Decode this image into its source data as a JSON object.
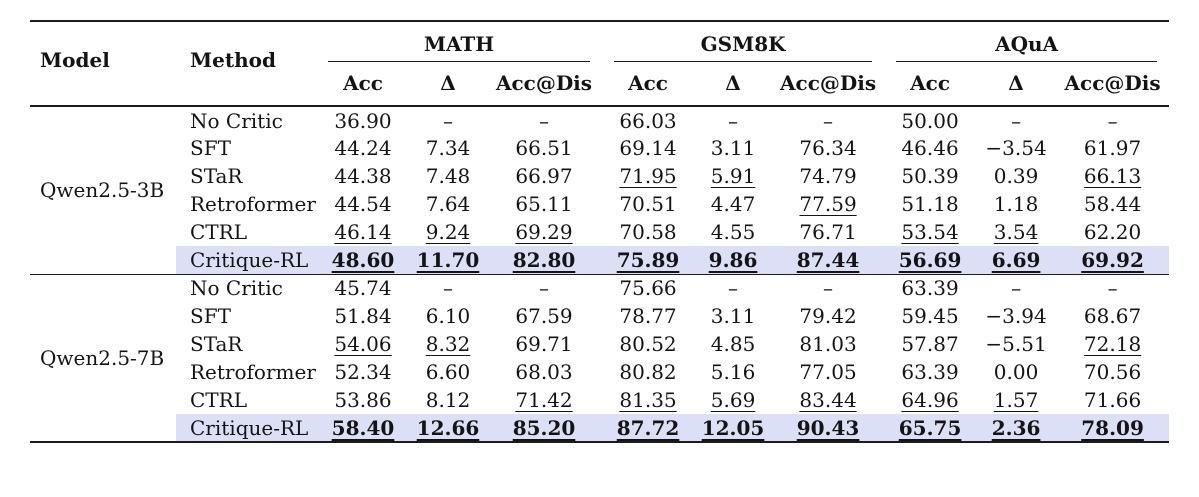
{
  "table": {
    "highlight_color": "#dbe0f6",
    "rule_color": "#1b1b1b",
    "header": {
      "model_label": "Model",
      "method_label": "Method",
      "groups": [
        {
          "label": "MATH"
        },
        {
          "label": "GSM8K"
        },
        {
          "label": "AQuA"
        }
      ],
      "subcolumns": [
        {
          "label": "Acc",
          "key": "acc"
        },
        {
          "label": "Δ",
          "key": "delta"
        },
        {
          "label": "Acc@Dis",
          "key": "acc-dis"
        }
      ]
    },
    "blocks": [
      {
        "model": "Qwen2.5-3B",
        "rows": [
          {
            "method": "No Critic",
            "highlight": false,
            "cells": [
              {
                "v": "36.90"
              },
              {
                "v": "–"
              },
              {
                "v": "–"
              },
              {
                "v": "66.03"
              },
              {
                "v": "–"
              },
              {
                "v": "–"
              },
              {
                "v": "50.00"
              },
              {
                "v": "–"
              },
              {
                "v": "–"
              }
            ]
          },
          {
            "method": "SFT",
            "highlight": false,
            "cells": [
              {
                "v": "44.24"
              },
              {
                "v": "7.34"
              },
              {
                "v": "66.51"
              },
              {
                "v": "69.14"
              },
              {
                "v": "3.11"
              },
              {
                "v": "76.34"
              },
              {
                "v": "46.46"
              },
              {
                "v": "−3.54"
              },
              {
                "v": "61.97"
              }
            ]
          },
          {
            "method": "STaR",
            "highlight": false,
            "cells": [
              {
                "v": "44.38"
              },
              {
                "v": "7.48"
              },
              {
                "v": "66.97"
              },
              {
                "v": "71.95",
                "s": "u"
              },
              {
                "v": "5.91",
                "s": "u"
              },
              {
                "v": "74.79"
              },
              {
                "v": "50.39"
              },
              {
                "v": "0.39"
              },
              {
                "v": "66.13",
                "s": "u"
              }
            ]
          },
          {
            "method": "Retroformer",
            "highlight": false,
            "cells": [
              {
                "v": "44.54"
              },
              {
                "v": "7.64"
              },
              {
                "v": "65.11"
              },
              {
                "v": "70.51"
              },
              {
                "v": "4.47"
              },
              {
                "v": "77.59",
                "s": "u"
              },
              {
                "v": "51.18"
              },
              {
                "v": "1.18"
              },
              {
                "v": "58.44"
              }
            ]
          },
          {
            "method": "CTRL",
            "highlight": false,
            "cells": [
              {
                "v": "46.14",
                "s": "u"
              },
              {
                "v": "9.24",
                "s": "u"
              },
              {
                "v": "69.29",
                "s": "u"
              },
              {
                "v": "70.58"
              },
              {
                "v": "4.55"
              },
              {
                "v": "76.71"
              },
              {
                "v": "53.54",
                "s": "u"
              },
              {
                "v": "3.54",
                "s": "u"
              },
              {
                "v": "62.20"
              }
            ]
          },
          {
            "method": "Critique-RL",
            "highlight": true,
            "cells": [
              {
                "v": "48.60",
                "s": "bu"
              },
              {
                "v": "11.70",
                "s": "bu"
              },
              {
                "v": "82.80",
                "s": "bu"
              },
              {
                "v": "75.89",
                "s": "bu"
              },
              {
                "v": "9.86",
                "s": "bu"
              },
              {
                "v": "87.44",
                "s": "bu"
              },
              {
                "v": "56.69",
                "s": "bu"
              },
              {
                "v": "6.69",
                "s": "bu"
              },
              {
                "v": "69.92",
                "s": "bu"
              }
            ]
          }
        ]
      },
      {
        "model": "Qwen2.5-7B",
        "rows": [
          {
            "method": "No Critic",
            "highlight": false,
            "cells": [
              {
                "v": "45.74"
              },
              {
                "v": "–"
              },
              {
                "v": "–"
              },
              {
                "v": "75.66"
              },
              {
                "v": "–"
              },
              {
                "v": "–"
              },
              {
                "v": "63.39"
              },
              {
                "v": "–"
              },
              {
                "v": "–"
              }
            ]
          },
          {
            "method": "SFT",
            "highlight": false,
            "cells": [
              {
                "v": "51.84"
              },
              {
                "v": "6.10"
              },
              {
                "v": "67.59"
              },
              {
                "v": "78.77"
              },
              {
                "v": "3.11"
              },
              {
                "v": "79.42"
              },
              {
                "v": "59.45"
              },
              {
                "v": "−3.94"
              },
              {
                "v": "68.67"
              }
            ]
          },
          {
            "method": "STaR",
            "highlight": false,
            "cells": [
              {
                "v": "54.06",
                "s": "u"
              },
              {
                "v": "8.32",
                "s": "u"
              },
              {
                "v": "69.71"
              },
              {
                "v": "80.52"
              },
              {
                "v": "4.85"
              },
              {
                "v": "81.03"
              },
              {
                "v": "57.87"
              },
              {
                "v": "−5.51"
              },
              {
                "v": "72.18",
                "s": "u"
              }
            ]
          },
          {
            "method": "Retroformer",
            "highlight": false,
            "cells": [
              {
                "v": "52.34"
              },
              {
                "v": "6.60"
              },
              {
                "v": "68.03"
              },
              {
                "v": "80.82"
              },
              {
                "v": "5.16"
              },
              {
                "v": "77.05"
              },
              {
                "v": "63.39"
              },
              {
                "v": "0.00"
              },
              {
                "v": "70.56"
              }
            ]
          },
          {
            "method": "CTRL",
            "highlight": false,
            "cells": [
              {
                "v": "53.86"
              },
              {
                "v": "8.12"
              },
              {
                "v": "71.42",
                "s": "u"
              },
              {
                "v": "81.35",
                "s": "u"
              },
              {
                "v": "5.69",
                "s": "u"
              },
              {
                "v": "83.44",
                "s": "u"
              },
              {
                "v": "64.96",
                "s": "u"
              },
              {
                "v": "1.57",
                "s": "u"
              },
              {
                "v": "71.66"
              }
            ]
          },
          {
            "method": "Critique-RL",
            "highlight": true,
            "cells": [
              {
                "v": "58.40",
                "s": "bu"
              },
              {
                "v": "12.66",
                "s": "bu"
              },
              {
                "v": "85.20",
                "s": "bu"
              },
              {
                "v": "87.72",
                "s": "bu"
              },
              {
                "v": "12.05",
                "s": "bu"
              },
              {
                "v": "90.43",
                "s": "bu"
              },
              {
                "v": "65.75",
                "s": "bu"
              },
              {
                "v": "2.36",
                "s": "bu"
              },
              {
                "v": "78.09",
                "s": "bu"
              }
            ]
          }
        ]
      }
    ]
  }
}
